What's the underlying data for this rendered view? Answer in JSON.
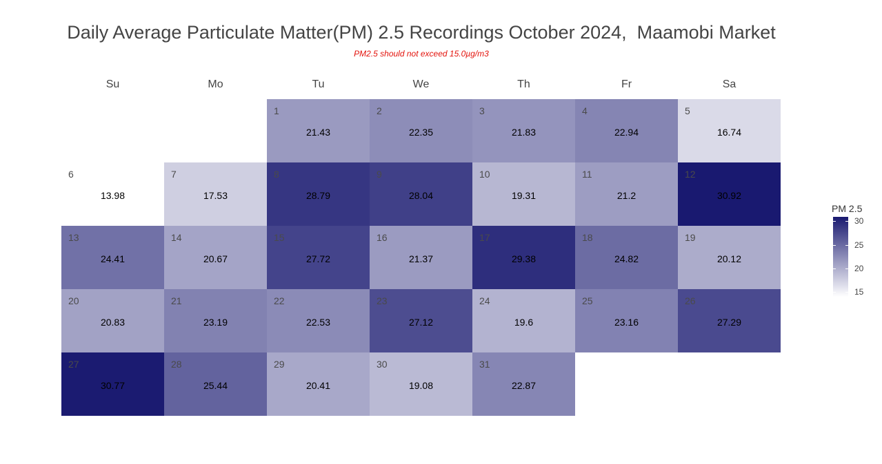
{
  "chart_data": {
    "type": "heatmap",
    "title": "Daily Average Particulate Matter(PM) 2.5 Recordings October 2024,  Maamobi Market",
    "subtitle": "PM2.5 should not exceed 15.0µg/m3",
    "weekdays": [
      "Su",
      "Mo",
      "Tu",
      "We",
      "Th",
      "Fr",
      "Sa"
    ],
    "first_weekday_index": 2,
    "days": [
      1,
      2,
      3,
      4,
      5,
      6,
      7,
      8,
      9,
      10,
      11,
      12,
      13,
      14,
      15,
      16,
      17,
      18,
      19,
      20,
      21,
      22,
      23,
      24,
      25,
      26,
      27,
      28,
      29,
      30,
      31
    ],
    "values": [
      21.43,
      22.35,
      21.83,
      22.94,
      16.74,
      13.98,
      17.53,
      28.79,
      28.04,
      19.31,
      21.2,
      30.92,
      24.41,
      20.67,
      27.72,
      21.37,
      29.38,
      24.82,
      20.12,
      20.83,
      23.19,
      22.53,
      27.12,
      19.6,
      23.16,
      27.29,
      30.77,
      25.44,
      20.41,
      19.08,
      22.87
    ],
    "legend": {
      "title": "PM 2.5",
      "ticks": [
        30,
        25,
        20,
        15
      ],
      "range": [
        13.98,
        30.92
      ],
      "color_low": "#ffffff",
      "color_high": "#191970"
    }
  }
}
